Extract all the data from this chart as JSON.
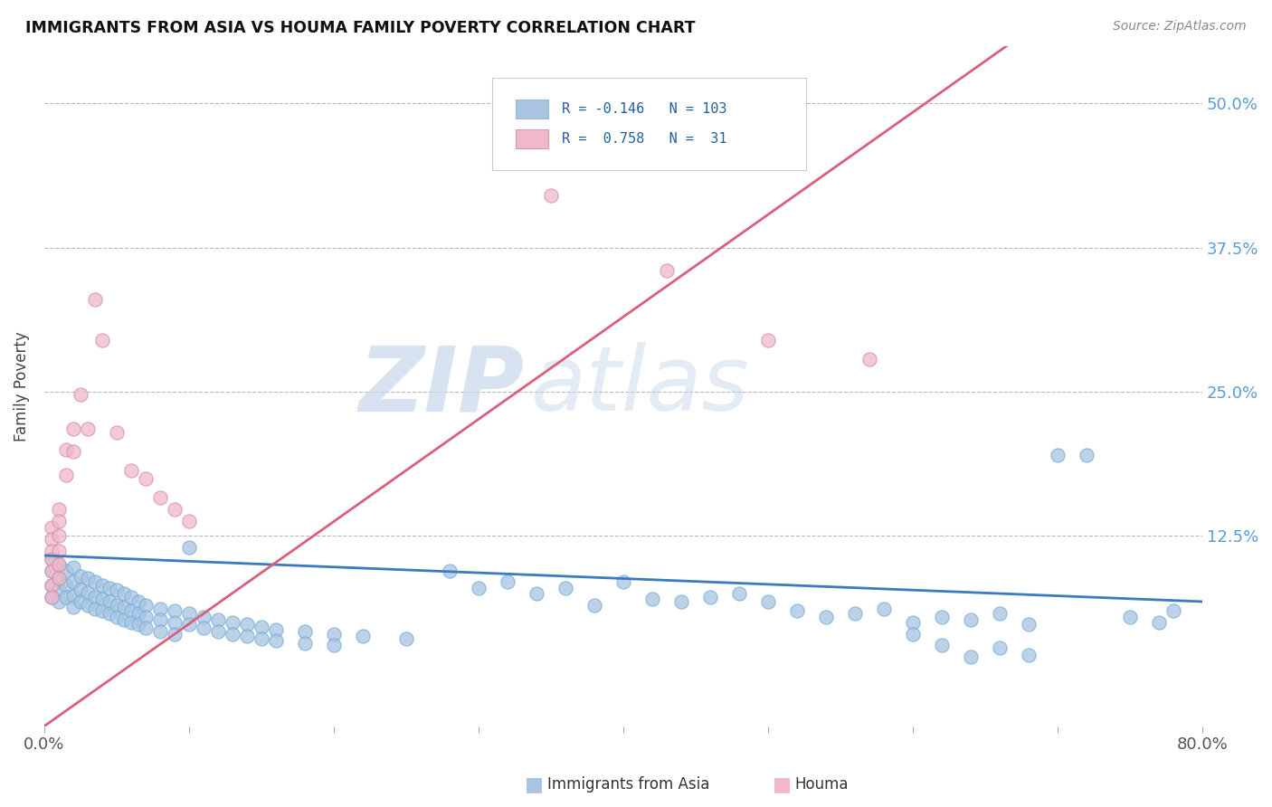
{
  "title": "IMMIGRANTS FROM ASIA VS HOUMA FAMILY POVERTY CORRELATION CHART",
  "source": "Source: ZipAtlas.com",
  "ylabel": "Family Poverty",
  "yticks": [
    "12.5%",
    "25.0%",
    "37.5%",
    "50.0%"
  ],
  "ytick_vals": [
    0.125,
    0.25,
    0.375,
    0.5
  ],
  "xlim": [
    0.0,
    0.8
  ],
  "ylim": [
    -0.04,
    0.55
  ],
  "watermark_zip": "ZIP",
  "watermark_atlas": "atlas",
  "blue_scatter_color": "#a8c4e0",
  "pink_scatter_color": "#f0b8c8",
  "blue_line_color": "#3a7abf",
  "pink_line_color": "#d9607a",
  "blue_line_x": [
    0.0,
    0.8
  ],
  "blue_line_y": [
    0.108,
    0.068
  ],
  "pink_line_x": [
    0.0,
    0.665
  ],
  "pink_line_y": [
    -0.04,
    0.55
  ],
  "legend_r1": "R = -0.146   N = 103",
  "legend_r2": "R =  0.758   N =  31",
  "blue_points": [
    [
      0.005,
      0.105
    ],
    [
      0.005,
      0.095
    ],
    [
      0.005,
      0.082
    ],
    [
      0.005,
      0.072
    ],
    [
      0.01,
      0.1
    ],
    [
      0.01,
      0.088
    ],
    [
      0.01,
      0.078
    ],
    [
      0.01,
      0.068
    ],
    [
      0.015,
      0.095
    ],
    [
      0.015,
      0.082
    ],
    [
      0.015,
      0.072
    ],
    [
      0.02,
      0.098
    ],
    [
      0.02,
      0.085
    ],
    [
      0.02,
      0.073
    ],
    [
      0.02,
      0.063
    ],
    [
      0.025,
      0.09
    ],
    [
      0.025,
      0.078
    ],
    [
      0.025,
      0.068
    ],
    [
      0.03,
      0.088
    ],
    [
      0.03,
      0.076
    ],
    [
      0.03,
      0.065
    ],
    [
      0.035,
      0.085
    ],
    [
      0.035,
      0.072
    ],
    [
      0.035,
      0.062
    ],
    [
      0.04,
      0.082
    ],
    [
      0.04,
      0.07
    ],
    [
      0.04,
      0.06
    ],
    [
      0.045,
      0.08
    ],
    [
      0.045,
      0.068
    ],
    [
      0.045,
      0.058
    ],
    [
      0.05,
      0.078
    ],
    [
      0.05,
      0.065
    ],
    [
      0.05,
      0.055
    ],
    [
      0.055,
      0.075
    ],
    [
      0.055,
      0.063
    ],
    [
      0.055,
      0.052
    ],
    [
      0.06,
      0.072
    ],
    [
      0.06,
      0.06
    ],
    [
      0.06,
      0.05
    ],
    [
      0.065,
      0.068
    ],
    [
      0.065,
      0.058
    ],
    [
      0.065,
      0.048
    ],
    [
      0.07,
      0.065
    ],
    [
      0.07,
      0.055
    ],
    [
      0.07,
      0.045
    ],
    [
      0.08,
      0.062
    ],
    [
      0.08,
      0.052
    ],
    [
      0.08,
      0.042
    ],
    [
      0.09,
      0.06
    ],
    [
      0.09,
      0.05
    ],
    [
      0.09,
      0.04
    ],
    [
      0.1,
      0.115
    ],
    [
      0.1,
      0.058
    ],
    [
      0.1,
      0.048
    ],
    [
      0.11,
      0.055
    ],
    [
      0.11,
      0.045
    ],
    [
      0.12,
      0.052
    ],
    [
      0.12,
      0.042
    ],
    [
      0.13,
      0.05
    ],
    [
      0.13,
      0.04
    ],
    [
      0.14,
      0.048
    ],
    [
      0.14,
      0.038
    ],
    [
      0.15,
      0.046
    ],
    [
      0.15,
      0.036
    ],
    [
      0.16,
      0.044
    ],
    [
      0.16,
      0.034
    ],
    [
      0.18,
      0.042
    ],
    [
      0.18,
      0.032
    ],
    [
      0.2,
      0.04
    ],
    [
      0.2,
      0.03
    ],
    [
      0.22,
      0.038
    ],
    [
      0.25,
      0.036
    ],
    [
      0.28,
      0.095
    ],
    [
      0.3,
      0.08
    ],
    [
      0.32,
      0.085
    ],
    [
      0.34,
      0.075
    ],
    [
      0.36,
      0.08
    ],
    [
      0.38,
      0.065
    ],
    [
      0.4,
      0.085
    ],
    [
      0.42,
      0.07
    ],
    [
      0.44,
      0.068
    ],
    [
      0.46,
      0.072
    ],
    [
      0.48,
      0.075
    ],
    [
      0.5,
      0.068
    ],
    [
      0.52,
      0.06
    ],
    [
      0.54,
      0.055
    ],
    [
      0.56,
      0.058
    ],
    [
      0.58,
      0.062
    ],
    [
      0.6,
      0.05
    ],
    [
      0.6,
      0.04
    ],
    [
      0.62,
      0.055
    ],
    [
      0.62,
      0.03
    ],
    [
      0.64,
      0.052
    ],
    [
      0.64,
      0.02
    ],
    [
      0.66,
      0.058
    ],
    [
      0.66,
      0.028
    ],
    [
      0.68,
      0.048
    ],
    [
      0.68,
      0.022
    ],
    [
      0.7,
      0.195
    ],
    [
      0.72,
      0.195
    ],
    [
      0.75,
      0.055
    ],
    [
      0.77,
      0.05
    ],
    [
      0.78,
      0.06
    ]
  ],
  "pink_points": [
    [
      0.005,
      0.132
    ],
    [
      0.005,
      0.122
    ],
    [
      0.005,
      0.112
    ],
    [
      0.005,
      0.105
    ],
    [
      0.005,
      0.095
    ],
    [
      0.005,
      0.082
    ],
    [
      0.005,
      0.072
    ],
    [
      0.01,
      0.148
    ],
    [
      0.01,
      0.138
    ],
    [
      0.01,
      0.125
    ],
    [
      0.01,
      0.112
    ],
    [
      0.01,
      0.1
    ],
    [
      0.01,
      0.088
    ],
    [
      0.015,
      0.2
    ],
    [
      0.015,
      0.178
    ],
    [
      0.02,
      0.218
    ],
    [
      0.02,
      0.198
    ],
    [
      0.025,
      0.248
    ],
    [
      0.03,
      0.218
    ],
    [
      0.035,
      0.33
    ],
    [
      0.04,
      0.295
    ],
    [
      0.05,
      0.215
    ],
    [
      0.06,
      0.182
    ],
    [
      0.07,
      0.175
    ],
    [
      0.08,
      0.158
    ],
    [
      0.09,
      0.148
    ],
    [
      0.1,
      0.138
    ],
    [
      0.35,
      0.42
    ],
    [
      0.43,
      0.355
    ],
    [
      0.5,
      0.295
    ],
    [
      0.57,
      0.278
    ]
  ]
}
